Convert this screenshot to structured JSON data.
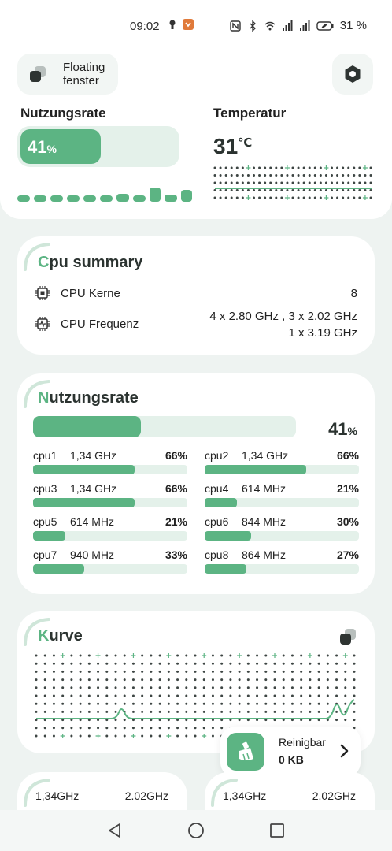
{
  "status": {
    "time": "09:02",
    "battery": "31 %"
  },
  "header": {
    "floating_label": "Floating fenster",
    "floating_icon": "floating-window-icon",
    "settings_icon": "settings-hexagon-icon"
  },
  "overview": {
    "usage_title": "Nutzungsrate",
    "usage_value": "41",
    "usage_unit": "%",
    "usage_fraction": 0.41,
    "history_levels": [
      0.45,
      0.45,
      0.45,
      0.45,
      0.45,
      0.45,
      0.55,
      0.45,
      1.0,
      0.5,
      0.85
    ],
    "temp_title": "Temperatur",
    "temp_value": "31",
    "temp_unit": "℃"
  },
  "cpu_summary": {
    "title_first": "C",
    "title_rest": "pu summary",
    "rows": [
      {
        "label": "CPU Kerne",
        "value": "8",
        "value2": "",
        "icon": "cpu-chip-icon"
      },
      {
        "label": "CPU Frequenz",
        "value": "4 x 2.80 GHz , 3 x 2.02 GHz",
        "value2": "1 x 3.19 GHz",
        "icon": "cpu-frequency-icon"
      }
    ]
  },
  "usage_card": {
    "title_first": "N",
    "title_rest": "utzungsrate",
    "total_value": "41",
    "total_unit": "%",
    "total_fraction": 0.41,
    "cores": [
      {
        "name": "cpu1",
        "freq": "1,34 GHz",
        "pct": "66%",
        "fraction": 0.66
      },
      {
        "name": "cpu2",
        "freq": "1,34 GHz",
        "pct": "66%",
        "fraction": 0.66
      },
      {
        "name": "cpu3",
        "freq": "1,34 GHz",
        "pct": "66%",
        "fraction": 0.66
      },
      {
        "name": "cpu4",
        "freq": "614 MHz",
        "pct": "21%",
        "fraction": 0.21
      },
      {
        "name": "cpu5",
        "freq": "614 MHz",
        "pct": "21%",
        "fraction": 0.21
      },
      {
        "name": "cpu6",
        "freq": "844 MHz",
        "pct": "30%",
        "fraction": 0.3
      },
      {
        "name": "cpu7",
        "freq": "940 MHz",
        "pct": "33%",
        "fraction": 0.33
      },
      {
        "name": "cpu8",
        "freq": "864 MHz",
        "pct": "27%",
        "fraction": 0.27
      }
    ]
  },
  "curve_card": {
    "title_first": "K",
    "title_rest": "urve",
    "toggle_icon": "floating-window-icon"
  },
  "clean_popup": {
    "title": "Reinigbar",
    "value": "0 KB",
    "icon": "broom-icon"
  },
  "freq_cards": [
    {
      "left": "1,34GHz",
      "right": "2.02GHz"
    },
    {
      "left": "1,34GHz",
      "right": "2.02GHz"
    }
  ],
  "colors": {
    "accent": "#5cb483",
    "track": "#e4f1ea",
    "background": "#eef3f1"
  }
}
